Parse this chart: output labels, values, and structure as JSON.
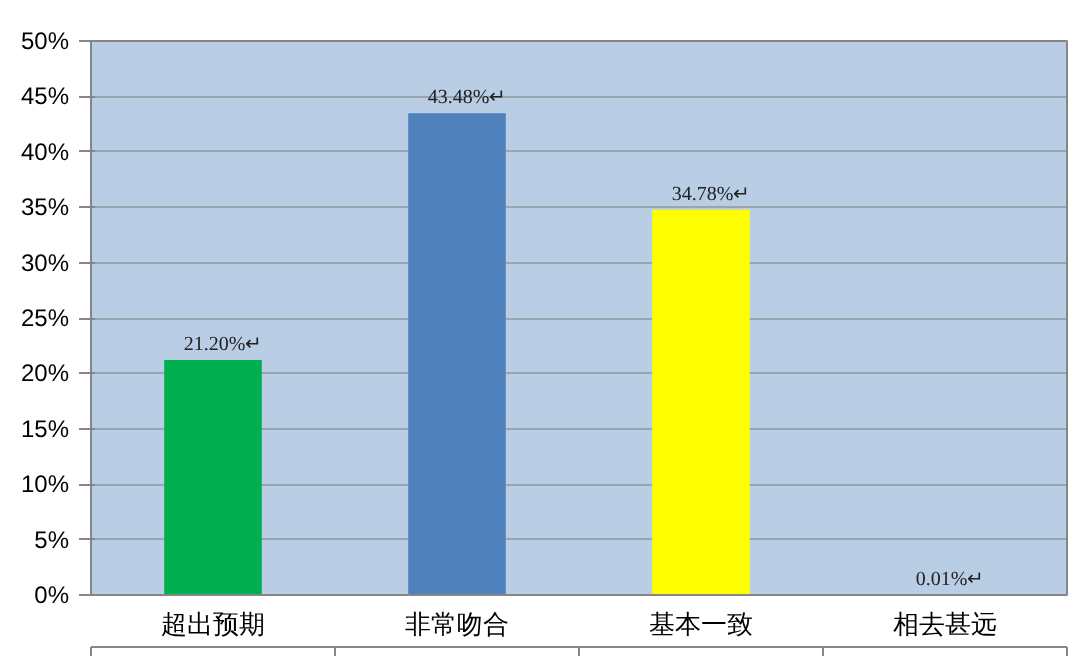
{
  "chart_data": {
    "type": "bar",
    "categories": [
      "超出预期",
      "非常吻合",
      "基本一致",
      "相去甚远"
    ],
    "values": [
      21.2,
      43.48,
      34.78,
      0.01
    ],
    "colors": [
      "#00b050",
      "#4f81bd",
      "#ffff00",
      "#ff0000"
    ],
    "value_labels": [
      "21.20%↵",
      "43.48%↵",
      "34.78%↵",
      "0.01%↵"
    ],
    "ylim": [
      0,
      50
    ],
    "yticks": [
      {
        "value": 0,
        "label": "0%"
      },
      {
        "value": 5,
        "label": "5%"
      },
      {
        "value": 10,
        "label": "10%"
      },
      {
        "value": 15,
        "label": "15%"
      },
      {
        "value": 20,
        "label": "20%"
      },
      {
        "value": 25,
        "label": "25%"
      },
      {
        "value": 30,
        "label": "30%"
      },
      {
        "value": 35,
        "label": "35%"
      },
      {
        "value": 40,
        "label": "40%"
      },
      {
        "value": 45,
        "label": "45%"
      },
      {
        "value": 50,
        "label": "50%"
      }
    ],
    "grid": "y"
  }
}
